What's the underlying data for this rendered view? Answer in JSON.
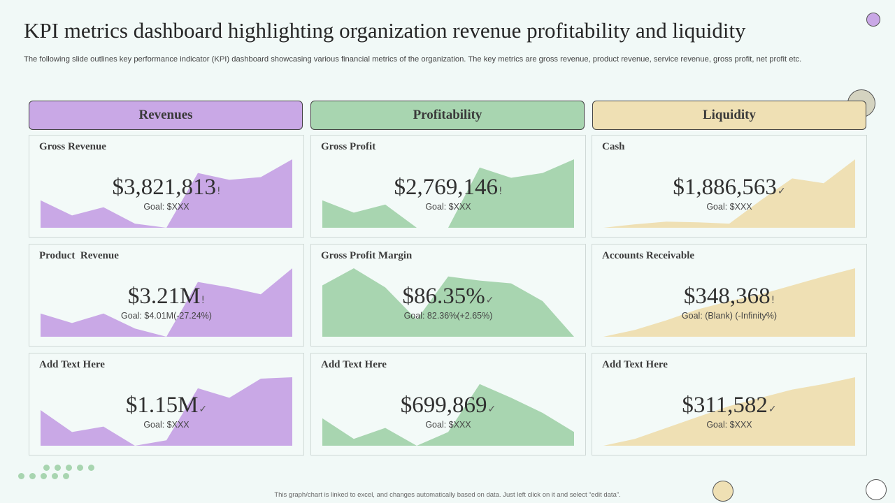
{
  "title": "KPI metrics dashboard highlighting organization revenue profitability and liquidity",
  "subtitle": "The following slide outlines key performance indicator (KPI) dashboard showcasing various financial metrics of the organization. The key metrics are gross revenue, product revenue, service revenue, gross profit, net profit etc.",
  "footer": "This graph/chart is linked to excel, and changes automatically based on data. Just left click on it and select “edit data”.",
  "colors": {
    "revenue": "#c9a8e6",
    "profitability": "#a8d5b0",
    "liquidity": "#efe0b4",
    "background": "#f1f9f7"
  },
  "columns": [
    {
      "label": "Revenues",
      "color": "#c9a8e6"
    },
    {
      "label": "Profitability",
      "color": "#a8d5b0"
    },
    {
      "label": "Liquidity",
      "color": "#efe0b4"
    }
  ],
  "cards": [
    {
      "label": "Gross Revenue",
      "value": "$3,821,813",
      "indicator": "!",
      "goal": "Goal: $XXX"
    },
    {
      "label": "Gross Profit",
      "value": "$2,769,146",
      "indicator": "!",
      "goal": "Goal: $XXX"
    },
    {
      "label": "Cash",
      "value": "$1,886,563",
      "indicator": "✓",
      "goal": "Goal: $XXX"
    },
    {
      "label": "Product  Revenue",
      "value": "$3.21M",
      "indicator": "!",
      "goal": "Goal: $4.01M(-27.24%)"
    },
    {
      "label": "Gross Profit Margin",
      "value": "$86.35%",
      "indicator": "✓",
      "goal": "Goal: 82.36%(+2.65%)"
    },
    {
      "label": "Accounts Receivable",
      "value": "$348,368",
      "indicator": "!",
      "goal": "Goal: (Blank) (-Infinity%)"
    },
    {
      "label": "Add Text Here",
      "value": "$1.15M",
      "indicator": "✓",
      "goal": "Goal: $XXX"
    },
    {
      "label": "Add Text Here",
      "value": "$699,869",
      "indicator": "✓",
      "goal": "Goal: $XXX"
    },
    {
      "label": "Add Text Here",
      "value": "$311,582",
      "indicator": "✓",
      "goal": "Goal: $XXX"
    }
  ],
  "chart_data": [
    {
      "type": "area",
      "title": "Gross Revenue",
      "color": "#c9a8e6",
      "ylim": [
        0,
        100
      ],
      "values": [
        40,
        18,
        30,
        6,
        0,
        80,
        70,
        74,
        100
      ]
    },
    {
      "type": "area",
      "title": "Gross Profit",
      "color": "#a8d5b0",
      "ylim": [
        0,
        100
      ],
      "values": [
        40,
        22,
        34,
        0,
        0,
        88,
        73,
        80,
        100
      ]
    },
    {
      "type": "area",
      "title": "Cash",
      "color": "#efe0b4",
      "ylim": [
        0,
        100
      ],
      "values": [
        0,
        5,
        9,
        8,
        6,
        40,
        72,
        65,
        100
      ]
    },
    {
      "type": "area",
      "title": "Product  Revenue",
      "color": "#c9a8e6",
      "ylim": [
        0,
        100
      ],
      "values": [
        34,
        20,
        34,
        12,
        0,
        80,
        72,
        62,
        100
      ]
    },
    {
      "type": "area",
      "title": "Gross Profit Margin",
      "color": "#a8d5b0",
      "ylim": [
        0,
        100
      ],
      "values": [
        75,
        100,
        72,
        25,
        88,
        82,
        78,
        52,
        0
      ]
    },
    {
      "type": "area",
      "title": "Accounts Receivable",
      "color": "#efe0b4",
      "ylim": [
        0,
        100
      ],
      "values": [
        0,
        10,
        24,
        40,
        52,
        62,
        75,
        88,
        100
      ]
    },
    {
      "type": "area",
      "title": "Add Text Here",
      "color": "#c9a8e6",
      "ylim": [
        0,
        100
      ],
      "values": [
        52,
        20,
        28,
        0,
        8,
        84,
        70,
        98,
        100
      ]
    },
    {
      "type": "area",
      "title": "Add Text Here",
      "color": "#a8d5b0",
      "ylim": [
        0,
        100
      ],
      "values": [
        40,
        10,
        26,
        0,
        20,
        90,
        70,
        48,
        20
      ]
    },
    {
      "type": "area",
      "title": "Add Text Here",
      "color": "#efe0b4",
      "ylim": [
        0,
        100
      ],
      "values": [
        0,
        10,
        26,
        42,
        58,
        70,
        82,
        90,
        100
      ]
    }
  ]
}
